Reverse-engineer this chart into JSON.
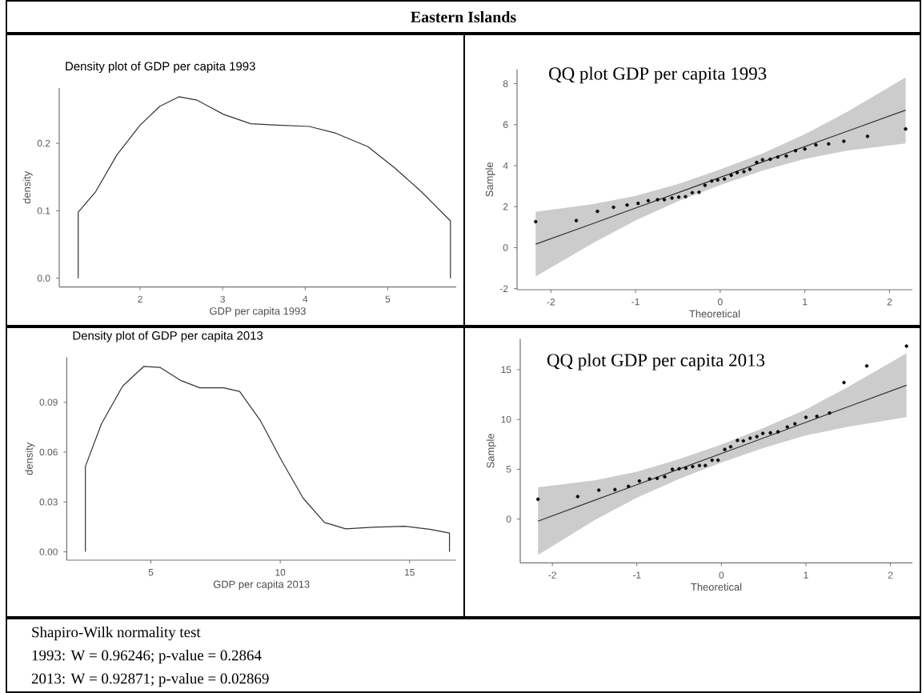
{
  "chart_data": [
    {
      "type": "other",
      "title": "**Eastern Islands**"
    },
    {
      "type": "line",
      "title": "Density plot of GDP per capita 1993",
      "xlabel": "GDP per capita 1993",
      "ylabel": "density",
      "color": "#333333",
      "x": [
        1.25,
        1.25,
        1.46,
        1.72,
        2.0,
        2.24,
        2.47,
        2.69,
        3.01,
        3.34,
        3.66,
        4.05,
        4.37,
        4.76,
        5.09,
        5.41,
        5.76,
        5.76
      ],
      "values": [
        0,
        0.098,
        0.128,
        0.183,
        0.227,
        0.255,
        0.269,
        0.264,
        0.243,
        0.229,
        0.227,
        0.225,
        0.215,
        0.195,
        0.163,
        0.128,
        0.085,
        0
      ],
      "xlim": [
        1.02,
        5.83
      ],
      "ylim": [
        -0.013,
        0.282
      ],
      "xticks": [
        2,
        3,
        4,
        5
      ],
      "yticks": [
        {
          "value": 0,
          "label": "0.0"
        },
        0.1,
        0.2
      ]
    },
    {
      "type": "scatter",
      "title": "QQ plot GDP per capita 1993",
      "xlabel": "Theoretical",
      "ylabel": "Sample",
      "xlim": [
        -2.4,
        2.27
      ],
      "ylim": [
        -2.05,
        8.7
      ],
      "xticks": [
        -2,
        -1,
        0,
        1,
        2
      ],
      "yticks": [
        -2,
        0,
        2,
        4,
        6,
        8
      ],
      "series": [
        {
          "type": "line",
          "color": "#333333",
          "x": [
            -2.18,
            -1.5,
            -1,
            -0.5,
            0,
            0.5,
            1,
            1.5,
            2.19
          ],
          "values": [
            0.17,
            1.18,
            1.93,
            2.68,
            3.43,
            4.18,
            4.93,
            5.68,
            6.71
          ],
          "lower": [
            -1.41,
            0.23,
            1.33,
            2.26,
            3.05,
            3.76,
            4.33,
            4.73,
            5.08
          ],
          "upper": [
            1.75,
            2.13,
            2.53,
            3.1,
            3.81,
            4.6,
            5.53,
            6.63,
            8.3
          ]
        },
        {
          "type": "scatter",
          "color": "#000000",
          "marker": "circle",
          "x": [
            -2.18,
            -1.7,
            -1.45,
            -1.26,
            -1.1,
            -0.97,
            -0.85,
            -0.74,
            -0.66,
            -0.57,
            -0.49,
            -0.41,
            -0.33,
            -0.25,
            -0.18,
            -0.1,
            -0.03,
            0.05,
            0.13,
            0.2,
            0.28,
            0.35,
            0.43,
            0.5,
            0.59,
            0.68,
            0.78,
            0.89,
            1.0,
            1.13,
            1.28,
            1.46,
            1.74,
            2.19
          ],
          "values": [
            1.27,
            1.32,
            1.77,
            1.97,
            2.08,
            2.16,
            2.29,
            2.34,
            2.34,
            2.42,
            2.47,
            2.49,
            2.68,
            2.7,
            3.04,
            3.25,
            3.3,
            3.35,
            3.53,
            3.66,
            3.71,
            3.82,
            4.16,
            4.29,
            4.31,
            4.42,
            4.47,
            4.73,
            4.81,
            5.01,
            5.06,
            5.19,
            5.43,
            5.79
          ]
        }
      ]
    },
    {
      "type": "line",
      "title": "Density plot of GDP per capita 2013",
      "xlabel": "GDP per capita 2013",
      "ylabel": "density",
      "color": "#333333",
      "x": [
        2.47,
        2.47,
        3.09,
        3.91,
        4.73,
        5.35,
        6.17,
        6.89,
        7.81,
        8.43,
        9.24,
        10.06,
        10.89,
        11.71,
        12.53,
        13.56,
        14.79,
        15.82,
        16.54,
        16.54
      ],
      "values": [
        0,
        0.0514,
        0.077,
        0.0997,
        0.1116,
        0.111,
        0.103,
        0.0987,
        0.0987,
        0.0965,
        0.0788,
        0.0547,
        0.0322,
        0.0177,
        0.0138,
        0.0148,
        0.0154,
        0.0135,
        0.0113,
        0
      ],
      "xlim": [
        1.75,
        16.8
      ],
      "ylim": [
        -0.005,
        0.117
      ],
      "xticks": [
        5,
        10,
        15
      ],
      "yticks": [
        {
          "value": 0,
          "label": "0.00"
        },
        {
          "value": 0.03,
          "label": "0.03"
        },
        {
          "value": 0.06,
          "label": "0.06"
        },
        {
          "value": 0.09,
          "label": "0.09"
        }
      ]
    },
    {
      "type": "scatter",
      "title": "QQ plot GDP per capita 2013",
      "xlabel": "Theoretical",
      "ylabel": "Sample",
      "xlim": [
        -2.38,
        2.26
      ],
      "ylim": [
        -4.4,
        18.1
      ],
      "xticks": [
        -2,
        -1,
        0,
        1,
        2
      ],
      "yticks": [
        0,
        5,
        10,
        15
      ],
      "series": [
        {
          "type": "line",
          "color": "#333333",
          "x": [
            -2.17,
            -1.5,
            -1,
            -0.5,
            0,
            0.5,
            1,
            1.5,
            2.19
          ],
          "values": [
            -0.21,
            1.89,
            3.45,
            5.02,
            6.58,
            8.15,
            9.71,
            11.28,
            13.44
          ],
          "lower": [
            -3.61,
            -0.11,
            2.15,
            4.02,
            5.68,
            7.15,
            8.41,
            9.28,
            10.24
          ],
          "upper": [
            3.19,
            3.89,
            4.75,
            6.02,
            7.48,
            9.15,
            11.01,
            13.28,
            16.64
          ]
        },
        {
          "type": "scatter",
          "color": "#000000",
          "marker": "circle",
          "x": [
            -2.17,
            -1.7,
            -1.45,
            -1.26,
            -1.1,
            -0.97,
            -0.85,
            -0.76,
            -0.67,
            -0.58,
            -0.5,
            -0.42,
            -0.34,
            -0.26,
            -0.19,
            -0.11,
            -0.04,
            0.04,
            0.11,
            0.19,
            0.26,
            0.34,
            0.42,
            0.49,
            0.58,
            0.67,
            0.78,
            0.87,
            1.0,
            1.13,
            1.28,
            1.45,
            1.72,
            2.19
          ],
          "values": [
            1.99,
            2.26,
            2.9,
            2.96,
            3.28,
            3.82,
            4.03,
            4.09,
            4.25,
            5.0,
            5.05,
            5.11,
            5.27,
            5.38,
            5.38,
            5.91,
            5.91,
            6.99,
            7.26,
            7.9,
            7.85,
            8.12,
            8.28,
            8.6,
            8.66,
            8.76,
            9.25,
            9.57,
            10.22,
            10.32,
            10.65,
            13.71,
            15.38,
            17.37
          ]
        }
      ]
    },
    {
      "type": "other",
      "title": "Shapiro-Wilk normality test",
      "annotations": [
        "1993: W = 0.96246; p-value = 0.2864",
        "2013: W = 0.92871; p-value = 0.02869"
      ]
    }
  ]
}
